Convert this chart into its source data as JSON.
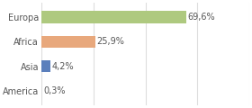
{
  "categories": [
    "Europa",
    "Africa",
    "Asia",
    "America"
  ],
  "values": [
    69.6,
    25.9,
    4.2,
    0.3
  ],
  "labels": [
    "69,6%",
    "25,9%",
    "4,2%",
    "0,3%"
  ],
  "bar_colors": [
    "#aec97f",
    "#e8a87c",
    "#5b7fbc",
    "#aaaaaa"
  ],
  "background_color": "#ffffff",
  "plot_bg_color": "#ffffff",
  "xlim": [
    0,
    100
  ],
  "grid_color": "#dddddd",
  "label_fontsize": 7.0,
  "category_fontsize": 7.0,
  "bar_height": 0.5,
  "text_color": "#555555"
}
